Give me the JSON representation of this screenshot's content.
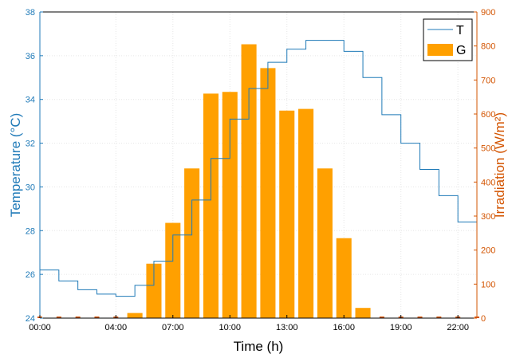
{
  "chart_data": {
    "type": "bar",
    "xlabel": "Time (h)",
    "ylabel_left": "Temperature (°C)",
    "ylabel_right": "Irradiation (W/m²)",
    "x_range": [
      0,
      23
    ],
    "ylim_left": [
      24,
      38
    ],
    "ylim_right": [
      0,
      900
    ],
    "x_ticks": [
      "00:00",
      "04:00",
      "07:00",
      "10:00",
      "13:00",
      "16:00",
      "19:00",
      "22:00"
    ],
    "x_tick_hours": [
      0,
      4,
      7,
      10,
      13,
      16,
      19,
      22
    ],
    "y_left_ticks": [
      24,
      26,
      28,
      30,
      32,
      34,
      36,
      38
    ],
    "y_right_ticks": [
      0,
      100,
      200,
      300,
      400,
      500,
      600,
      700,
      800,
      900
    ],
    "grid": true,
    "legend_position": "top-right",
    "colors": {
      "left_axis": "#1f7ab8",
      "right_axis": "#d35400",
      "temperature": "#1f7ab8",
      "irradiation": "#ffa000"
    },
    "series": [
      {
        "name": "T",
        "type": "step",
        "axis": "left",
        "x": [
          0,
          1,
          2,
          3,
          4,
          5,
          6,
          7,
          8,
          9,
          10,
          11,
          12,
          13,
          14,
          15,
          16,
          17,
          18,
          19,
          20,
          21,
          22,
          23
        ],
        "values": [
          26.2,
          25.7,
          25.3,
          25.1,
          25.0,
          25.5,
          26.6,
          27.8,
          29.4,
          31.3,
          33.1,
          34.5,
          35.7,
          36.3,
          36.7,
          36.7,
          36.2,
          35.0,
          33.3,
          32.0,
          30.8,
          29.6,
          28.4,
          27.4
        ]
      },
      {
        "name": "G",
        "type": "bar",
        "axis": "right",
        "x": [
          0,
          1,
          2,
          3,
          4,
          5,
          6,
          7,
          8,
          9,
          10,
          11,
          12,
          13,
          14,
          15,
          16,
          17,
          18,
          19,
          20,
          21,
          22,
          23
        ],
        "values": [
          0,
          0,
          0,
          0,
          0,
          15,
          160,
          280,
          440,
          660,
          665,
          805,
          735,
          610,
          615,
          440,
          235,
          30,
          0,
          0,
          0,
          0,
          0,
          0
        ]
      }
    ]
  }
}
